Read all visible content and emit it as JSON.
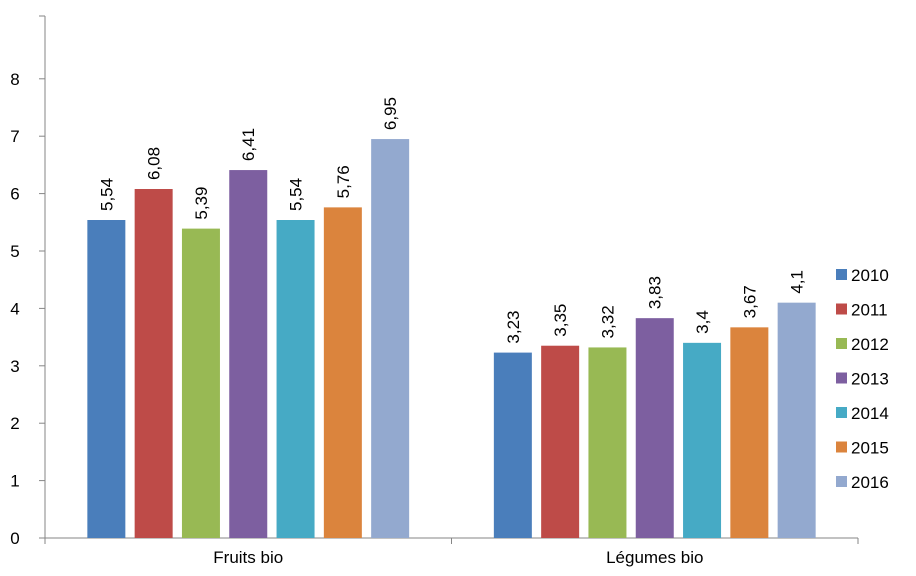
{
  "chart_data": {
    "type": "bar",
    "title": "",
    "xlabel": "",
    "ylabel": "",
    "ylim": [
      0,
      8
    ],
    "y_ticks": [
      0,
      1,
      2,
      3,
      4,
      5,
      6,
      7,
      8
    ],
    "grid": false,
    "legend_position": "right",
    "categories": [
      "Fruits bio",
      "Légumes bio"
    ],
    "series": [
      {
        "name": "2010",
        "color": "#4a7ebb",
        "values": [
          5.54,
          3.23
        ],
        "labels": [
          "5,54",
          "3,23"
        ]
      },
      {
        "name": "2011",
        "color": "#be4b48",
        "values": [
          6.08,
          3.35
        ],
        "labels": [
          "6,08",
          "3,35"
        ]
      },
      {
        "name": "2012",
        "color": "#98b954",
        "values": [
          5.39,
          3.32
        ],
        "labels": [
          "5,39",
          "3,32"
        ]
      },
      {
        "name": "2013",
        "color": "#7d5fa0",
        "values": [
          6.41,
          3.83
        ],
        "labels": [
          "6,41",
          "3,83"
        ]
      },
      {
        "name": "2014",
        "color": "#46aac5",
        "values": [
          5.54,
          3.4
        ],
        "labels": [
          "5,54",
          "3,4"
        ]
      },
      {
        "name": "2015",
        "color": "#db843d",
        "values": [
          5.76,
          3.67
        ],
        "labels": [
          "5,76",
          "3,67"
        ]
      },
      {
        "name": "2016",
        "color": "#93a9cf",
        "values": [
          6.95,
          4.1
        ],
        "labels": [
          "6,95",
          "4,1"
        ]
      }
    ]
  }
}
